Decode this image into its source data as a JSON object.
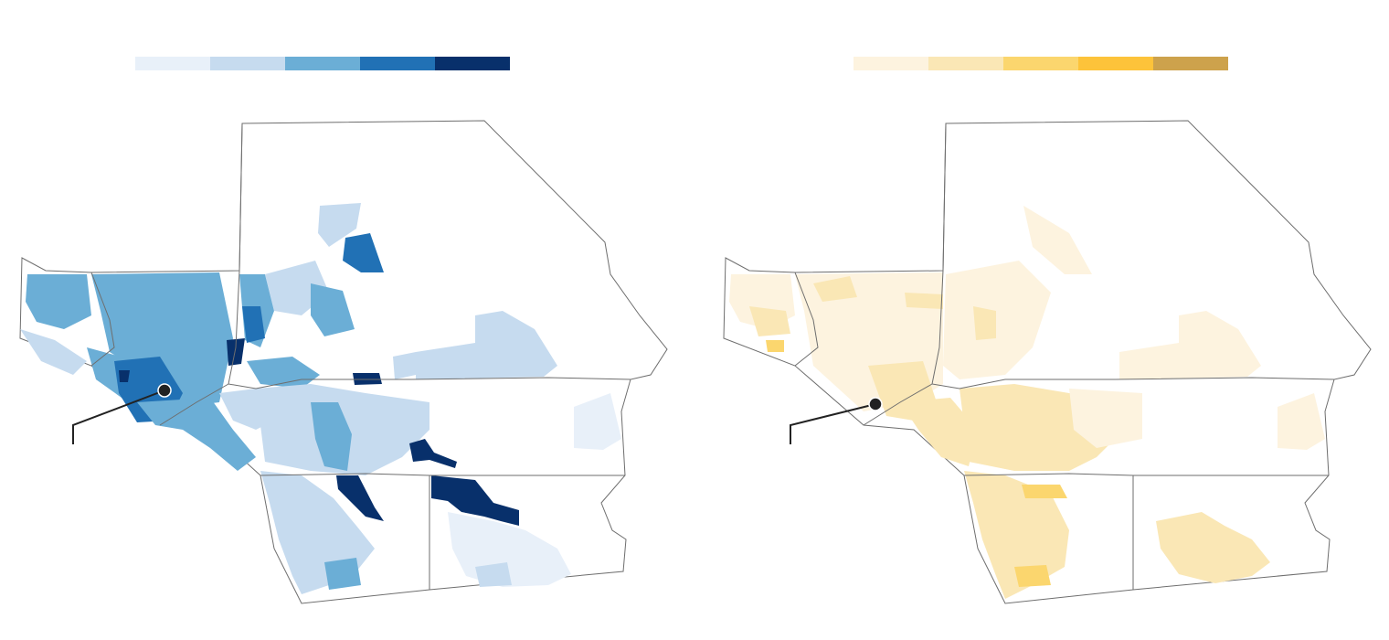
{
  "maps": [
    {
      "id": "left",
      "legend_colors": [
        "#e8f0f9",
        "#c6dbef",
        "#6baed6",
        "#2171b5",
        "#08306b"
      ]
    },
    {
      "id": "right",
      "legend_colors": [
        "#fdf3df",
        "#fae7b5",
        "#fbd66e",
        "#fdc33a",
        "#cda24c"
      ]
    }
  ]
}
